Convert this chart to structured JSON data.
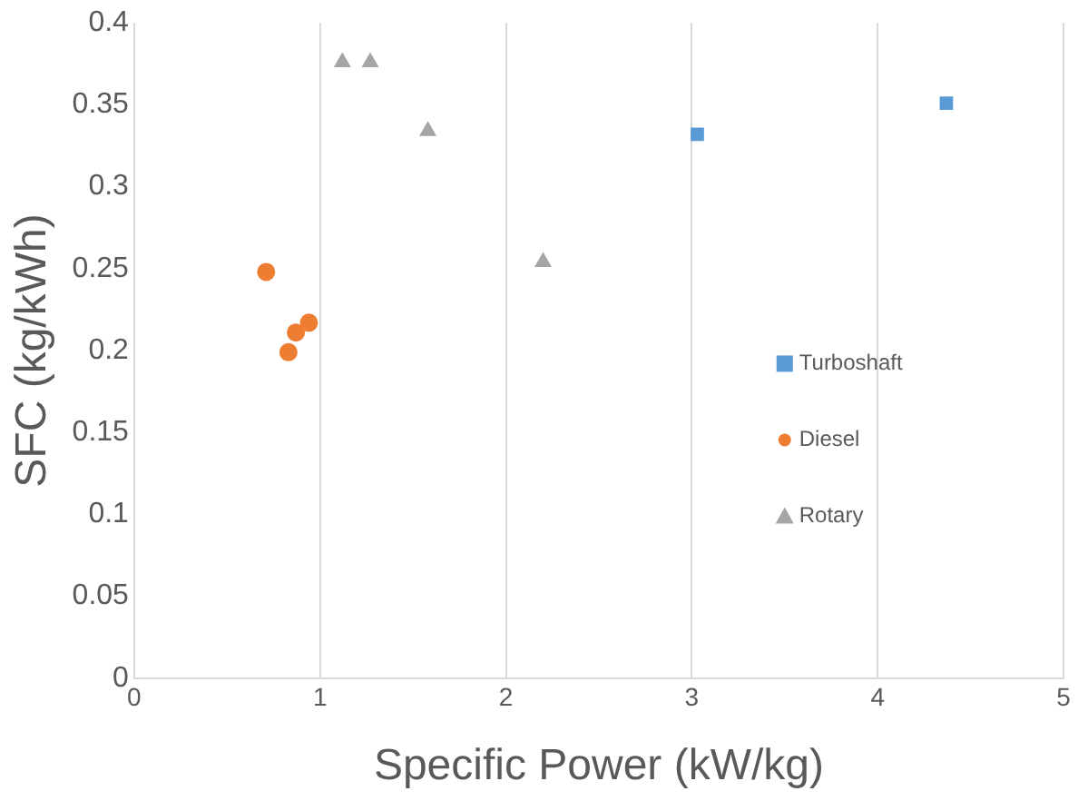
{
  "chart_data": {
    "type": "scatter",
    "xlabel": "Specific Power (kW/kg)",
    "ylabel": "SFC (kg/kWh)",
    "xlim": [
      0,
      5
    ],
    "xticks": [
      0,
      1,
      2,
      3,
      4,
      5
    ],
    "ylim": [
      0,
      0.4
    ],
    "yticks": [
      0,
      0.05,
      0.1,
      0.15,
      0.2,
      0.25,
      0.3,
      0.35,
      0.4
    ],
    "grid": "x",
    "legend": "right",
    "series": [
      {
        "name": "Turboshaft",
        "color": "#5b9bd5",
        "marker": "square",
        "x": [
          3.03,
          4.37
        ],
        "values": [
          0.332,
          0.351
        ]
      },
      {
        "name": "Diesel",
        "color": "#ed7d31",
        "marker": "circle",
        "x": [
          0.71,
          0.87,
          0.94,
          0.83
        ],
        "values": [
          0.248,
          0.211,
          0.217,
          0.199
        ]
      },
      {
        "name": "Rotary",
        "color": "#a5a5a5",
        "marker": "triangle",
        "x": [
          1.12,
          1.27,
          1.58,
          2.2
        ],
        "values": [
          0.376,
          0.376,
          0.334,
          0.254
        ]
      }
    ]
  }
}
